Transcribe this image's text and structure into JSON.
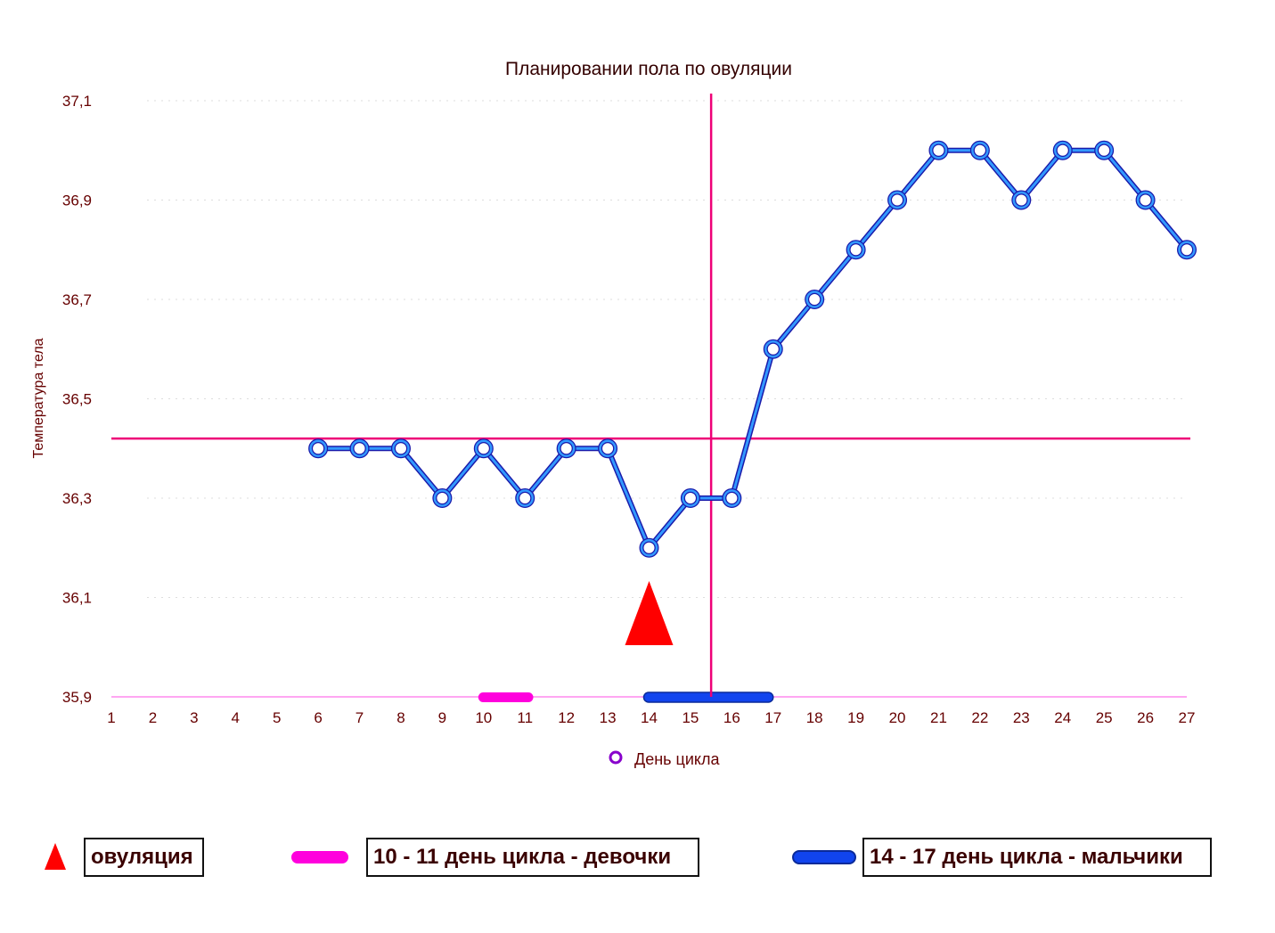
{
  "chart_data": {
    "type": "line",
    "title": "Планировании пола по овуляции",
    "ylabel": "Температура тела",
    "xlabel": "",
    "x": [
      1,
      2,
      3,
      4,
      5,
      6,
      7,
      8,
      9,
      10,
      11,
      12,
      13,
      14,
      15,
      16,
      17,
      18,
      19,
      20,
      21,
      22,
      23,
      24,
      25,
      26,
      27
    ],
    "y_ticks": [
      "37,1",
      "36,9",
      "36,7",
      "36,5",
      "36,3",
      "36,1",
      "35,9"
    ],
    "y_tick_values": [
      37.1,
      36.9,
      36.7,
      36.5,
      36.3,
      36.1,
      35.9
    ],
    "ylim": [
      35.9,
      37.1
    ],
    "xlim": [
      1,
      27
    ],
    "grid": true,
    "series": [
      {
        "name": "День цикла",
        "color": "#3399ff",
        "points": [
          [
            6,
            36.4
          ],
          [
            7,
            36.4
          ],
          [
            8,
            36.4
          ],
          [
            9,
            36.3
          ],
          [
            10,
            36.4
          ],
          [
            11,
            36.3
          ],
          [
            12,
            36.4
          ],
          [
            13,
            36.4
          ],
          [
            14,
            36.2
          ],
          [
            15,
            36.3
          ],
          [
            16,
            36.3
          ],
          [
            17,
            36.6
          ],
          [
            18,
            36.7
          ],
          [
            19,
            36.8
          ],
          [
            20,
            36.9
          ],
          [
            21,
            37.0
          ],
          [
            22,
            37.0
          ],
          [
            23,
            36.9
          ],
          [
            24,
            37.0
          ],
          [
            25,
            37.0
          ],
          [
            26,
            36.9
          ],
          [
            27,
            36.8
          ]
        ]
      }
    ],
    "coverline_y": 36.42,
    "ovulation_divider_x": 15.5,
    "ovulation_marker_x": 14,
    "ranges": [
      {
        "from": 10,
        "to": 11.2,
        "color": "#ff00dd"
      },
      {
        "from": 14,
        "to": 17,
        "color": "#1144ee"
      }
    ],
    "legend_position": "bottom-center"
  },
  "legend": {
    "ovulation_label": "овуляция",
    "girls_label": "10 - 11 день цикла - девочки",
    "boys_label": "14 - 17 день цикла - мальчики",
    "ovulation_color": "#ff0000",
    "girls_color": "#ff00dd",
    "boys_color": "#1144ee"
  },
  "colors": {
    "axis_text": "#660000",
    "guide_lines": "#ee0077",
    "series_fill": "#3399ff",
    "series_stroke": "#1a1aaa"
  }
}
